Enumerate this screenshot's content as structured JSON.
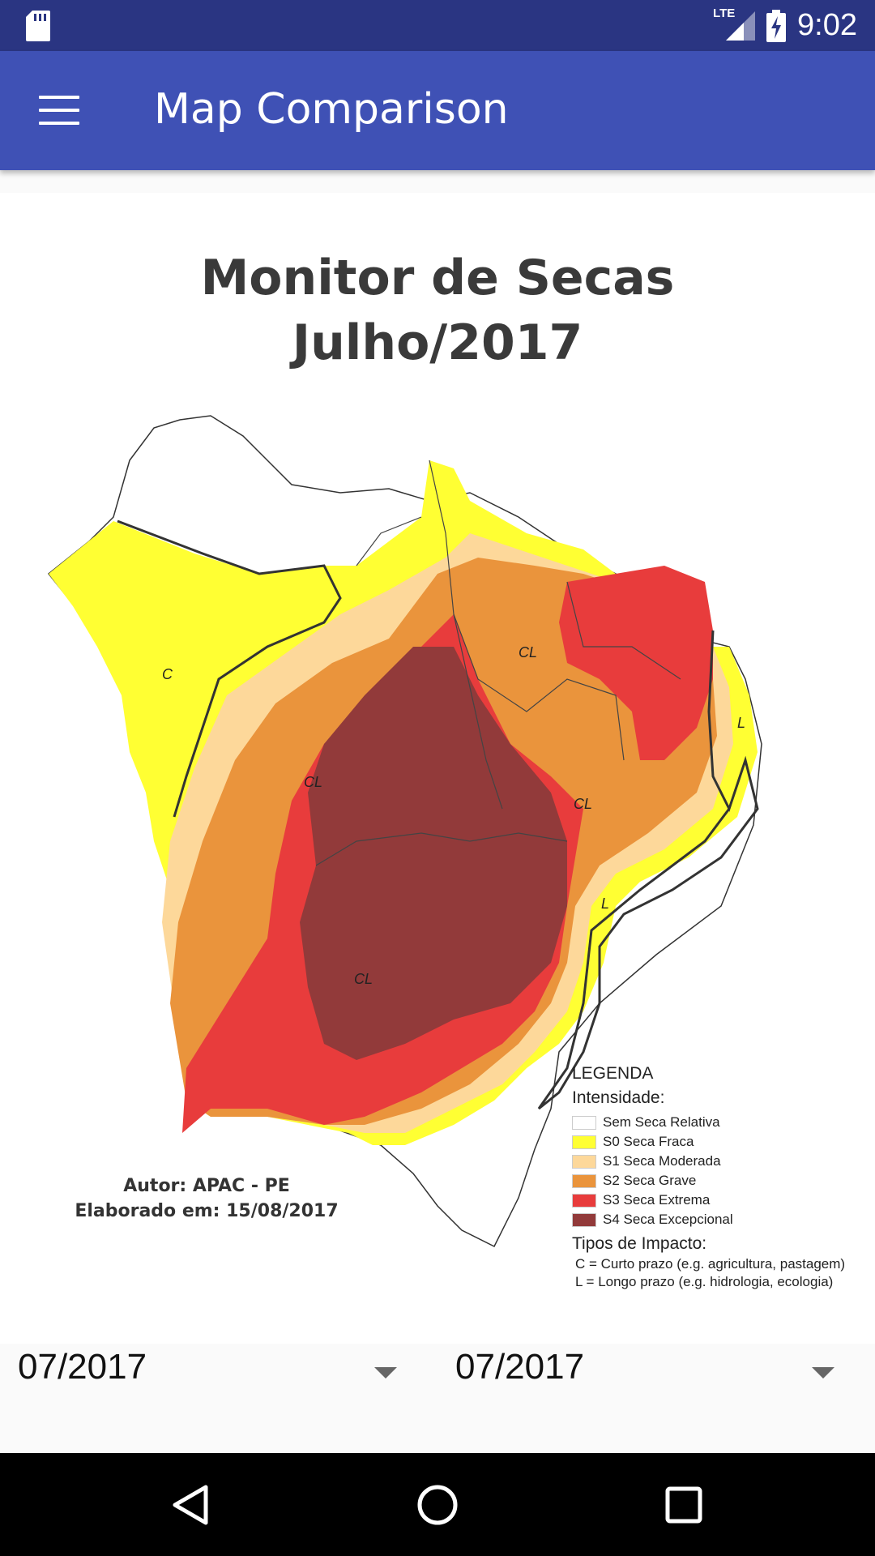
{
  "status_bar": {
    "time": "9:02",
    "network": "LTE"
  },
  "app_bar": {
    "title": "Map Comparison"
  },
  "map": {
    "title_line1": "Monitor de Secas",
    "title_line2": "Julho/2017",
    "region_labels": [
      "C",
      "CL",
      "CL",
      "CL",
      "CL",
      "L",
      "L"
    ],
    "author": "Autor: APAC - PE",
    "date": "Elaborado em: 15/08/2017",
    "legend": {
      "heading": "LEGENDA",
      "intensity_heading": "Intensidade:",
      "items": [
        {
          "label": "Sem Seca Relativa",
          "color": "#ffffff"
        },
        {
          "label": "S0 Seca Fraca",
          "color": "#ffff33"
        },
        {
          "label": "S1 Seca Moderada",
          "color": "#fdd89a"
        },
        {
          "label": "S2 Seca Grave",
          "color": "#ea943c"
        },
        {
          "label": "S3 Seca Extrema",
          "color": "#e83c3c"
        },
        {
          "label": "S4 Seca Excepcional",
          "color": "#923a3a"
        }
      ],
      "impact_heading": "Tipos de Impacto:",
      "impact_short": "C = Curto prazo (e.g. agricultura, pastagem)",
      "impact_long": "L = Longo prazo (e.g. hidrologia, ecologia)"
    }
  },
  "spinners": [
    {
      "value": "07/2017"
    },
    {
      "value": "07/2017"
    }
  ]
}
